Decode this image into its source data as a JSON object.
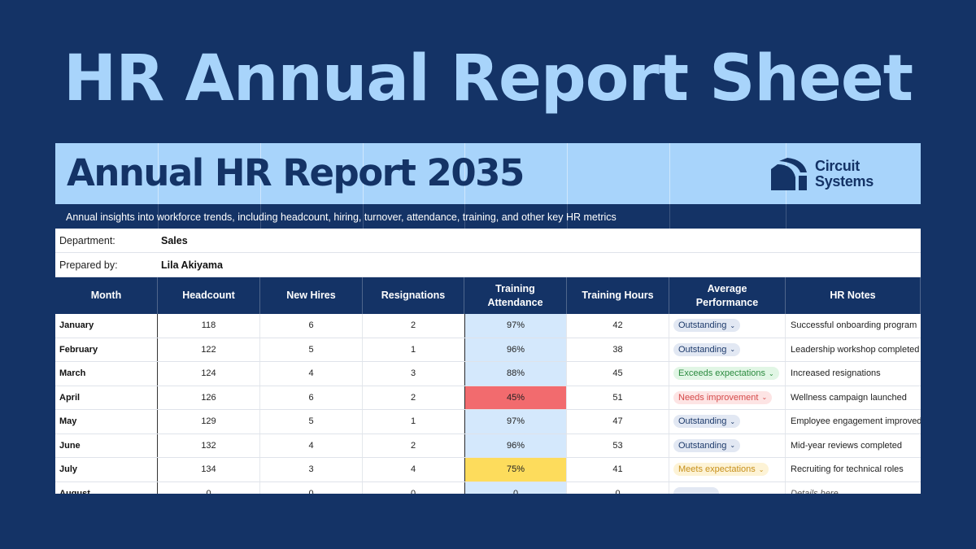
{
  "page_title": "HR Annual Report Sheet",
  "report": {
    "title": "Annual HR Report 2035",
    "subtitle": "Annual insights into workforce trends, including headcount, hiring, turnover, attendance, training, and other key HR metrics",
    "logo": {
      "line1": "Circuit",
      "line2": "Systems",
      "icon": "circuit-systems-logo-icon"
    }
  },
  "info": {
    "department_label": "Department:",
    "department_value": "Sales",
    "prepared_label": "Prepared by:",
    "prepared_value": "Lila Akiyama"
  },
  "columns": [
    {
      "label": "Month"
    },
    {
      "label": "Headcount"
    },
    {
      "label": "New Hires"
    },
    {
      "label": "Resignations"
    },
    {
      "label": "Training\nAttendance"
    },
    {
      "label": "Training Hours"
    },
    {
      "label": "Average\nPerformance"
    },
    {
      "label": "HR Notes"
    }
  ],
  "rows": [
    {
      "month": "January",
      "headcount": "118",
      "new_hires": "6",
      "resignations": "2",
      "attendance": "97%",
      "attendance_status": "normal",
      "hours": "42",
      "performance": "Outstanding",
      "performance_level": "outstanding",
      "notes": "Successful onboarding program"
    },
    {
      "month": "February",
      "headcount": "122",
      "new_hires": "5",
      "resignations": "1",
      "attendance": "96%",
      "attendance_status": "normal",
      "hours": "38",
      "performance": "Outstanding",
      "performance_level": "outstanding",
      "notes": "Leadership workshop completed"
    },
    {
      "month": "March",
      "headcount": "124",
      "new_hires": "4",
      "resignations": "3",
      "attendance": "88%",
      "attendance_status": "normal",
      "hours": "45",
      "performance": "Exceeds expectations",
      "performance_level": "exceeds",
      "notes": "Increased resignations"
    },
    {
      "month": "April",
      "headcount": "126",
      "new_hires": "6",
      "resignations": "2",
      "attendance": "45%",
      "attendance_status": "low",
      "hours": "51",
      "performance": "Needs improvement",
      "performance_level": "needs",
      "notes": "Wellness campaign launched"
    },
    {
      "month": "May",
      "headcount": "129",
      "new_hires": "5",
      "resignations": "1",
      "attendance": "97%",
      "attendance_status": "normal",
      "hours": "47",
      "performance": "Outstanding",
      "performance_level": "outstanding",
      "notes": "Employee engagement improved"
    },
    {
      "month": "June",
      "headcount": "132",
      "new_hires": "4",
      "resignations": "2",
      "attendance": "96%",
      "attendance_status": "normal",
      "hours": "53",
      "performance": "Outstanding",
      "performance_level": "outstanding",
      "notes": "Mid-year reviews completed"
    },
    {
      "month": "July",
      "headcount": "134",
      "new_hires": "3",
      "resignations": "4",
      "attendance": "75%",
      "attendance_status": "medium",
      "hours": "41",
      "performance": "Meets expectations",
      "performance_level": "meets",
      "notes": "Recruiting for technical roles"
    },
    {
      "month": "August",
      "headcount": "0",
      "new_hires": "0",
      "resignations": "0",
      "attendance": "0",
      "attendance_status": "normal",
      "hours": "0",
      "performance": "",
      "performance_level": "empty",
      "notes": "Details here"
    }
  ],
  "colors": {
    "background": "#143366",
    "title": "#a8d4fb",
    "banner": "#a8d4fb",
    "attendance_normal": "#d4e8fc",
    "attendance_low": "#f26b6e",
    "attendance_medium": "#fddc5c",
    "chip_outstanding_bg": "#e2e8f3",
    "chip_outstanding_fg": "#1d3a6b",
    "chip_exceeds_bg": "#e1f6e5",
    "chip_exceeds_fg": "#2a8a3e",
    "chip_needs_bg": "#fde4e4",
    "chip_needs_fg": "#d54a4a",
    "chip_meets_bg": "#fdf3d6",
    "chip_meets_fg": "#c7901b",
    "chip_empty_bg": "#e2e8f3"
  },
  "icons": {
    "dropdown": "chevron-down-icon"
  }
}
